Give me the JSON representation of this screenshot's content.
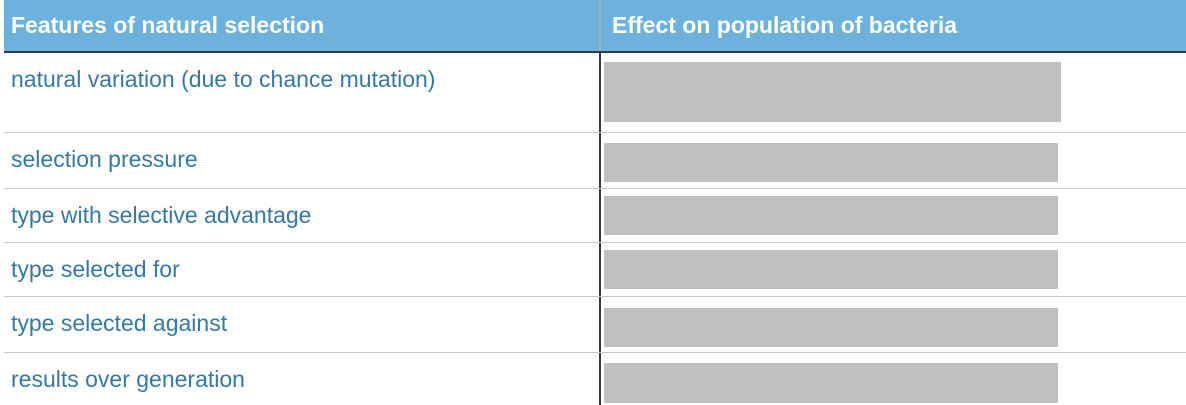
{
  "table": {
    "headers": [
      "Features of natural selection",
      "Effect on population of bacteria"
    ],
    "rows": [
      {
        "feature": "natural variation (due to chance mutation)",
        "effect_hidden": true
      },
      {
        "feature": "selection pressure",
        "effect_hidden": true
      },
      {
        "feature": "type with selective advantage",
        "effect_hidden": true
      },
      {
        "feature": "type selected for",
        "effect_hidden": true
      },
      {
        "feature": "type selected against",
        "effect_hidden": true
      },
      {
        "feature": "results over generation",
        "effect_hidden": true
      }
    ]
  },
  "colors": {
    "header_bg": "#6CB2DD",
    "header_text": "#FFFFFF",
    "feature_text": "#3579A5",
    "redaction_box": "#C0C0C0",
    "column_divider_dark": "#3B3B3B",
    "column_divider_in_header": "#A2AEB6",
    "row_separator": "#C5C5C5"
  }
}
